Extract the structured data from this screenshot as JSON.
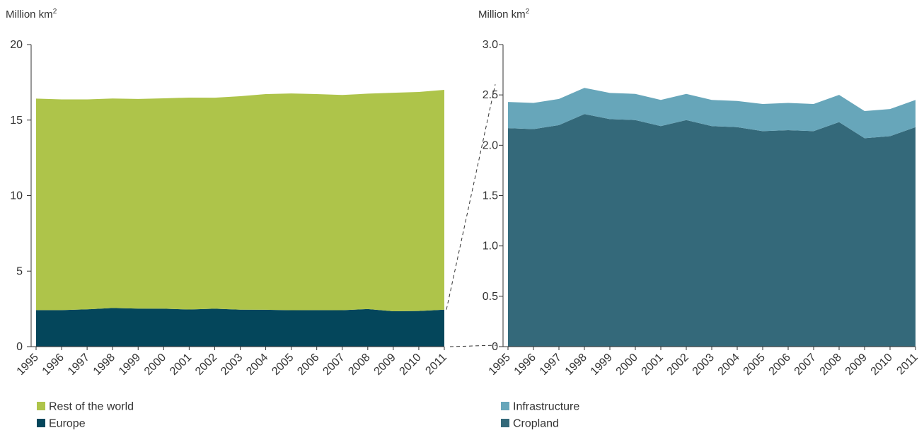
{
  "chart_data": [
    {
      "type": "area",
      "stacked": true,
      "ylabel": "Million km",
      "ylabel_superscript": "2",
      "ylim": [
        0,
        20
      ],
      "yticks": [
        0,
        5,
        10,
        15,
        20
      ],
      "ytick_labels": [
        "0",
        "5",
        "10",
        "15",
        "20"
      ],
      "x": [
        "1995",
        "1996",
        "1997",
        "1998",
        "1999",
        "2000",
        "2001",
        "2002",
        "2003",
        "2004",
        "2005",
        "2006",
        "2007",
        "2008",
        "2009",
        "2010",
        "2011"
      ],
      "series": [
        {
          "name": "Europe",
          "color": "#04465b",
          "values": [
            2.42,
            2.42,
            2.47,
            2.56,
            2.52,
            2.51,
            2.46,
            2.51,
            2.45,
            2.44,
            2.41,
            2.42,
            2.41,
            2.49,
            2.34,
            2.36,
            2.45
          ]
        },
        {
          "name": "Rest of the world",
          "color": "#aec44a",
          "values": [
            14.0,
            13.95,
            13.9,
            13.87,
            13.88,
            13.93,
            14.03,
            13.97,
            14.13,
            14.28,
            14.35,
            14.3,
            14.25,
            14.26,
            14.47,
            14.5,
            14.55
          ]
        }
      ],
      "legend": [
        "Rest of the world",
        "Europe"
      ],
      "legend_position": "bottom-left",
      "grid": false
    },
    {
      "type": "area",
      "stacked": true,
      "ylabel": "Million km",
      "ylabel_superscript": "2",
      "ylim": [
        0,
        3.0
      ],
      "yticks": [
        0,
        0.5,
        1.0,
        1.5,
        2.0,
        2.5,
        3.0
      ],
      "ytick_labels": [
        "0",
        "0.5",
        "1.0",
        "1.5",
        "2.0",
        "2.5",
        "3.0"
      ],
      "x": [
        "1995",
        "1996",
        "1997",
        "1998",
        "1999",
        "2000",
        "2001",
        "2002",
        "2003",
        "2004",
        "2005",
        "2006",
        "2007",
        "2008",
        "2009",
        "2010",
        "2011"
      ],
      "series": [
        {
          "name": "Cropland",
          "color": "#34697a",
          "values": [
            2.17,
            2.16,
            2.2,
            2.31,
            2.26,
            2.25,
            2.19,
            2.25,
            2.19,
            2.18,
            2.14,
            2.15,
            2.14,
            2.23,
            2.07,
            2.09,
            2.18
          ]
        },
        {
          "name": "Infrastructure",
          "color": "#67a6ba",
          "values": [
            0.26,
            0.26,
            0.26,
            0.26,
            0.26,
            0.26,
            0.26,
            0.26,
            0.26,
            0.26,
            0.27,
            0.27,
            0.27,
            0.27,
            0.27,
            0.27,
            0.27
          ]
        }
      ],
      "legend": [
        "Infrastructure",
        "Cropland"
      ],
      "legend_position": "bottom-left",
      "grid": false
    }
  ]
}
